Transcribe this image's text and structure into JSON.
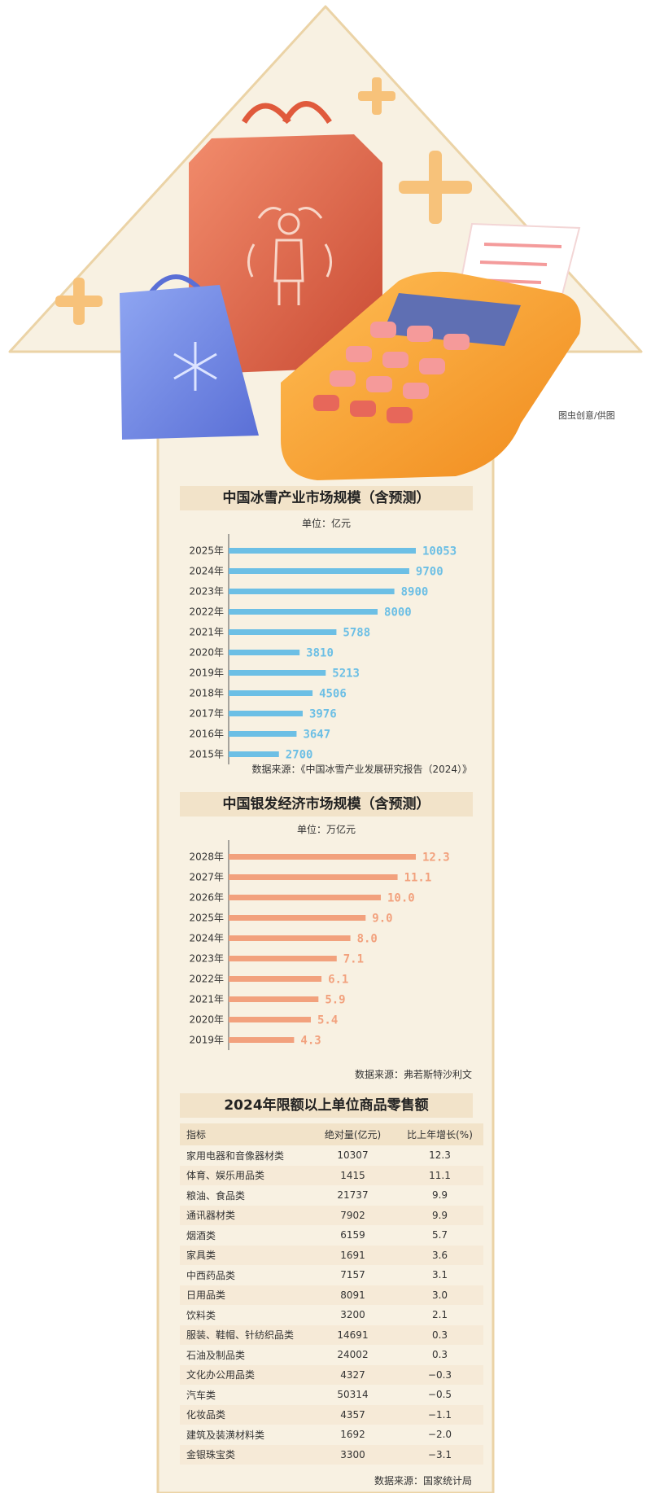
{
  "colors": {
    "snow_bar": "#6cbfe5",
    "silver_bar": "#f2a17d",
    "beige": "#f8f1e2",
    "header_band": "#f2e3c9"
  },
  "credit": "图虫创意/供图",
  "snow": {
    "title": "中国冰雪产业市场规模（含预测）",
    "unit": "单位：亿元",
    "source": "数据来源：《中国冰雪产业发展研究报告（2024）》"
  },
  "silver": {
    "title": "中国银发经济市场规模（含预测）",
    "unit": "单位：万亿元",
    "source": "数据来源：弗若斯特沙利文"
  },
  "retail": {
    "title": "2024年限额以上单位商品零售额",
    "headers": [
      "指标",
      "绝对量(亿元)",
      "比上年增长(%)"
    ],
    "rows": [
      [
        "家用电器和音像器材类",
        "10307",
        "12.3"
      ],
      [
        "体育、娱乐用品类",
        "1415",
        "11.1"
      ],
      [
        "粮油、食品类",
        "21737",
        "9.9"
      ],
      [
        "通讯器材类",
        "7902",
        "9.9"
      ],
      [
        "烟酒类",
        "6159",
        "5.7"
      ],
      [
        "家具类",
        "1691",
        "3.6"
      ],
      [
        "中西药品类",
        "7157",
        "3.1"
      ],
      [
        "日用品类",
        "8091",
        "3.0"
      ],
      [
        "饮料类",
        "3200",
        "2.1"
      ],
      [
        "服装、鞋帽、针纺织品类",
        "14691",
        "0.3"
      ],
      [
        "石油及制品类",
        "24002",
        "0.3"
      ],
      [
        "文化办公用品类",
        "4327",
        "−0.3"
      ],
      [
        "汽车类",
        "50314",
        "−0.5"
      ],
      [
        "化妆品类",
        "4357",
        "−1.1"
      ],
      [
        "建筑及装潢材料类",
        "1692",
        "−2.0"
      ],
      [
        "金银珠宝类",
        "3300",
        "−3.1"
      ]
    ],
    "source": "数据来源：国家统计局"
  },
  "chart_data": [
    {
      "type": "bar",
      "orientation": "horizontal",
      "title": "中国冰雪产业市场规模（含预测）",
      "categories": [
        "2025年",
        "2024年",
        "2023年",
        "2022年",
        "2021年",
        "2020年",
        "2019年",
        "2018年",
        "2017年",
        "2016年",
        "2015年"
      ],
      "values": [
        10053,
        9700,
        8900,
        8000,
        5788,
        3810,
        5213,
        4506,
        3976,
        3647,
        2700
      ],
      "labels": [
        "10053",
        "9700",
        "8900",
        "8000",
        "5788",
        "3810",
        "5213",
        "4506",
        "3976",
        "3647",
        "2700"
      ],
      "xlim": [
        0,
        10053
      ],
      "color": "#6cbfe5"
    },
    {
      "type": "bar",
      "orientation": "horizontal",
      "title": "中国银发经济市场规模（含预测）",
      "categories": [
        "2028年",
        "2027年",
        "2026年",
        "2025年",
        "2024年",
        "2023年",
        "2022年",
        "2021年",
        "2020年",
        "2019年"
      ],
      "values": [
        12.3,
        11.1,
        10.0,
        9.0,
        8.0,
        7.1,
        6.1,
        5.9,
        5.4,
        4.3
      ],
      "labels": [
        "12.3",
        "11.1",
        "10.0",
        "9.0",
        "8.0",
        "7.1",
        "6.1",
        "5.9",
        "5.4",
        "4.3"
      ],
      "xlim": [
        0,
        12.3
      ],
      "color": "#f2a17d"
    }
  ]
}
